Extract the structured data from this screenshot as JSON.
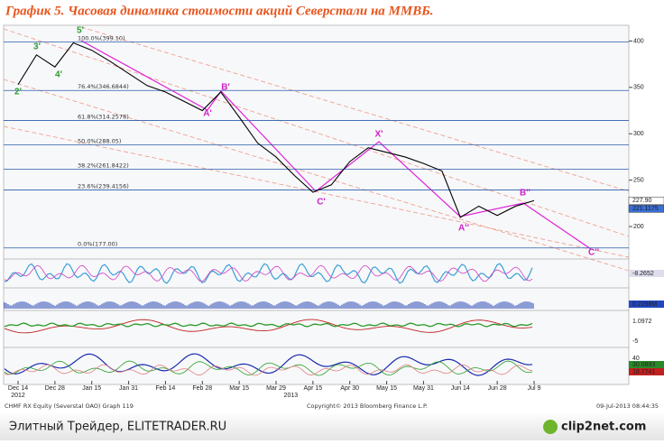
{
  "header": {
    "title": "График 5.   Часовая динамика стоимости акций Северстали на ММВБ."
  },
  "chart_data": {
    "type": "line",
    "categories": [
      "Dec 14",
      null,
      "Dec 28",
      null,
      "Jan 15",
      null,
      "Jan 31",
      null,
      "Feb 14",
      null,
      "Feb 28",
      null,
      "Mar 15",
      null,
      "Mar 29",
      null,
      "Apr 15",
      null,
      "Apr 30",
      null,
      "May 15",
      null,
      "May 31",
      null,
      "Jun 14",
      null,
      "Jun 28",
      null,
      "Jul 9"
    ],
    "years": [
      "2012",
      "2013"
    ],
    "series": [
      {
        "color": "#000000",
        "values": [
          353,
          385,
          372,
          398,
          390,
          378,
          365,
          352,
          345,
          335,
          325,
          345,
          318,
          290,
          275,
          255,
          237,
          245,
          270,
          285,
          280,
          275,
          268,
          260,
          210,
          222,
          212,
          222,
          228
        ]
      }
    ],
    "ylim": [
      167,
      415
    ],
    "yticks": [
      200,
      250,
      300,
      350,
      400
    ],
    "fib_color": "#2a5caa",
    "fib_levels": [
      {
        "value": 399.1,
        "label": "100.0%(399.10)"
      },
      {
        "value": 346.6844,
        "label": "76.4%(346.6844)"
      },
      {
        "value": 314.2578,
        "label": "61.8%(314.2578)"
      },
      {
        "value": 288.05,
        "label": "50.0%(288.05)"
      },
      {
        "value": 261.8422,
        "label": "38.2%(261.8422)"
      },
      {
        "value": 239.4156,
        "label": "23.6%(239.4156)"
      },
      {
        "value": 177.0,
        "label": "0.0%(177.00)"
      }
    ],
    "price_tags": [
      {
        "value": 227.9,
        "label": "227.90",
        "color": "#ffffff"
      },
      {
        "value": 221.1175,
        "label": "221.1175",
        "color": "#3a6fd8"
      }
    ],
    "annotations": [
      {
        "text": "2'",
        "color": "#2e9a2e"
      },
      {
        "text": "3'",
        "color": "#2e9a2e"
      },
      {
        "text": "4'",
        "color": "#2e9a2e"
      },
      {
        "text": "5'",
        "color": "#2e9a2e"
      },
      {
        "text": "A'",
        "color": "#d020c8"
      },
      {
        "text": "B'",
        "color": "#d020c8"
      },
      {
        "text": "C'",
        "color": "#d020c8"
      },
      {
        "text": "X'",
        "color": "#d020c8"
      },
      {
        "text": "A''",
        "color": "#d020c8"
      },
      {
        "text": "B''",
        "color": "#d020c8"
      },
      {
        "text": "C''",
        "color": "#d020c8"
      }
    ]
  },
  "panels": [
    {
      "labels": [
        "-8.2652"
      ]
    },
    {
      "labels": [
        "0.2298M"
      ]
    },
    {
      "labels": [
        "1.0972",
        "-5"
      ]
    },
    {
      "labels": [
        "40",
        "30.0893",
        "18.7741"
      ]
    }
  ],
  "footer": {
    "left": "CHMF RX Equity (Severstal OAO) Graph 119",
    "center": "Copyright© 2013 Bloomberg Finance L.P.",
    "right": "09-Jul-2013 08:44:35"
  },
  "watermark": {
    "left": "Элитный Трейдер, ELITETRADER.RU",
    "right": "clip2net.com"
  }
}
